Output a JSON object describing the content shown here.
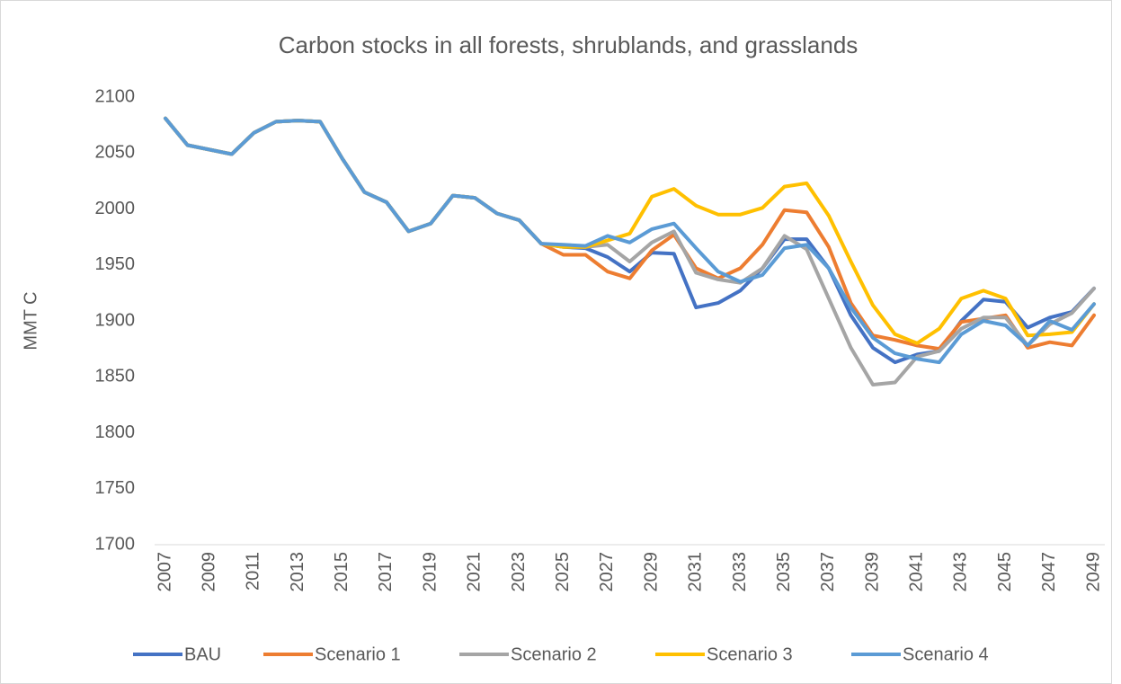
{
  "chart_data": {
    "type": "line",
    "title": "Carbon stocks in all forests, shrublands, and grasslands",
    "ylabel": "MMT C",
    "categories": [
      "2007",
      null,
      "2009",
      null,
      "2011",
      null,
      "2013",
      null,
      "2015",
      null,
      "2017",
      null,
      "2019",
      null,
      "2021",
      null,
      "2023",
      null,
      "2025",
      null,
      "2027",
      null,
      "2029",
      null,
      "2031",
      null,
      "2033",
      null,
      "2035",
      null,
      "2037",
      null,
      "2039",
      null,
      "2041",
      null,
      "2043",
      null,
      "2045",
      null,
      "2047",
      null,
      "2049"
    ],
    "ylim": [
      1700,
      2100
    ],
    "yticks": [
      1700,
      1750,
      1800,
      1850,
      1900,
      1950,
      2000,
      2050,
      2100
    ],
    "grid": false,
    "legend": "bottom",
    "series": [
      {
        "name": "BAU",
        "color": "#4472c4",
        "values": [
          2081,
          2057,
          2053,
          2049,
          2068,
          2078,
          2079,
          2078,
          2045,
          2015,
          2006,
          1980,
          1987,
          2012,
          2010,
          1996,
          1990,
          1969,
          1966,
          1965,
          1957,
          1944,
          1961,
          1960,
          1912,
          1916,
          1927,
          1947,
          1973,
          1973,
          1947,
          1905,
          1876,
          1863,
          1870,
          1873,
          1900,
          1919,
          1917,
          1894,
          1903,
          1908,
          1929
        ]
      },
      {
        "name": "Scenario 1",
        "color": "#ed7d31",
        "values": [
          2081,
          2057,
          2053,
          2049,
          2068,
          2078,
          2079,
          2078,
          2045,
          2015,
          2006,
          1980,
          1987,
          2012,
          2010,
          1996,
          1990,
          1969,
          1959,
          1959,
          1944,
          1938,
          1963,
          1977,
          1947,
          1938,
          1947,
          1968,
          1999,
          1997,
          1966,
          1916,
          1887,
          1883,
          1878,
          1875,
          1899,
          1902,
          1905,
          1876,
          1881,
          1878,
          1905
        ]
      },
      {
        "name": "Scenario 2",
        "color": "#a5a5a5",
        "values": [
          2081,
          2057,
          2053,
          2049,
          2068,
          2078,
          2079,
          2078,
          2045,
          2015,
          2006,
          1980,
          1987,
          2012,
          2010,
          1996,
          1990,
          1969,
          1967,
          1966,
          1968,
          1953,
          1970,
          1980,
          1943,
          1937,
          1934,
          1947,
          1976,
          1964,
          1920,
          1876,
          1843,
          1845,
          1868,
          1873,
          1893,
          1903,
          1903,
          1878,
          1897,
          1907,
          1929
        ]
      },
      {
        "name": "Scenario 3",
        "color": "#ffc000",
        "values": [
          2081,
          2057,
          2053,
          2049,
          2068,
          2078,
          2079,
          2078,
          2045,
          2015,
          2006,
          1980,
          1987,
          2012,
          2010,
          1996,
          1990,
          1969,
          1966,
          1966,
          1972,
          1978,
          2011,
          2018,
          2003,
          1995,
          1995,
          2001,
          2020,
          2023,
          1994,
          1953,
          1914,
          1888,
          1880,
          1893,
          1920,
          1927,
          1920,
          1887,
          1888,
          1890,
          1915
        ]
      },
      {
        "name": "Scenario 4",
        "color": "#5b9bd5",
        "values": [
          2081,
          2057,
          2053,
          2049,
          2068,
          2078,
          2079,
          2078,
          2045,
          2015,
          2006,
          1980,
          1987,
          2012,
          2010,
          1996,
          1990,
          1969,
          1968,
          1967,
          1976,
          1970,
          1982,
          1987,
          1965,
          1944,
          1935,
          1941,
          1965,
          1968,
          1947,
          1912,
          1885,
          1871,
          1866,
          1863,
          1888,
          1900,
          1896,
          1878,
          1900,
          1892,
          1915
        ]
      }
    ]
  }
}
